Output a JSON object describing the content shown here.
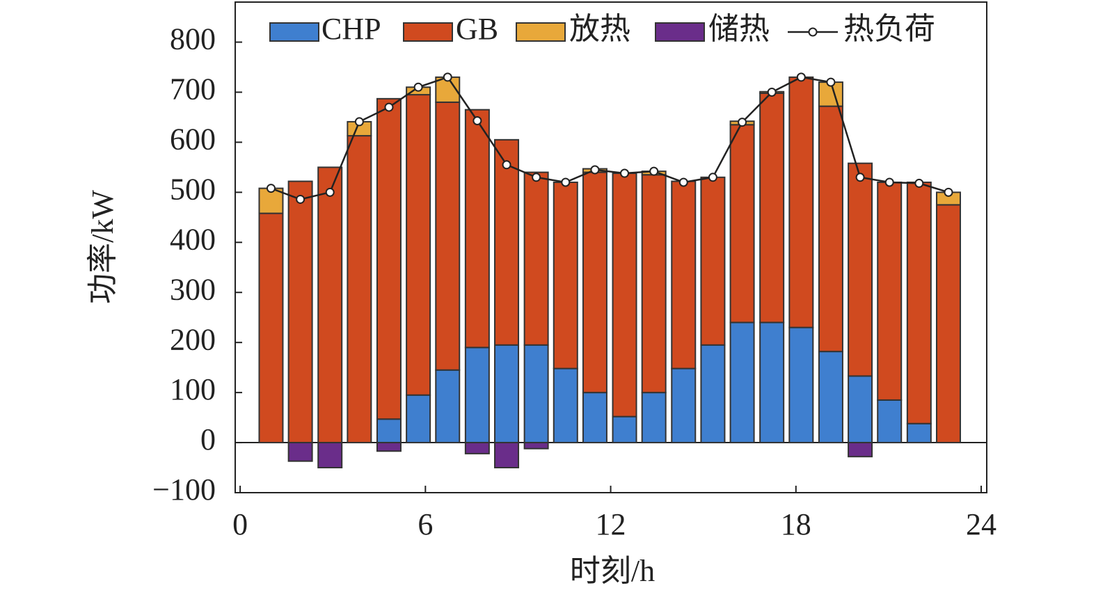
{
  "chart_data": {
    "type": "stacked-bar-line",
    "xlabel": "时刻/h",
    "ylabel": "功率/kW",
    "x": [
      1,
      1.95,
      2.91,
      3.86,
      4.82,
      5.77,
      6.72,
      7.68,
      8.63,
      9.59,
      10.54,
      11.49,
      12.45,
      13.4,
      14.36,
      15.31,
      16.26,
      17.22,
      18.17,
      19.13,
      20.08,
      21.03,
      21.99,
      22.94
    ],
    "series": [
      {
        "name": "CHP",
        "kind": "bar",
        "color": "#3f7fcf",
        "values": [
          0,
          0,
          0,
          0,
          47,
          95,
          145,
          190,
          195,
          195,
          148,
          100,
          52,
          100,
          148,
          195,
          240,
          240,
          230,
          182,
          133,
          85,
          38,
          0
        ]
      },
      {
        "name": "GB",
        "kind": "bar",
        "color": "#d04a1f",
        "values": [
          458,
          522,
          550,
          613,
          640,
          600,
          535,
          475,
          410,
          345,
          372,
          440,
          486,
          435,
          374,
          335,
          395,
          458,
          500,
          490,
          425,
          435,
          482,
          475
        ]
      },
      {
        "name": "放热",
        "kind": "bar",
        "color": "#e8a83a",
        "values": [
          50,
          0,
          0,
          28,
          0,
          15,
          50,
          0,
          0,
          0,
          0,
          7,
          0,
          7,
          0,
          0,
          7,
          3,
          0,
          48,
          0,
          0,
          0,
          25
        ]
      },
      {
        "name": "储热",
        "kind": "bar",
        "color": "#6a2d8a",
        "values": [
          0,
          -37,
          -50,
          0,
          -17,
          0,
          0,
          -22,
          -50,
          -12,
          0,
          0,
          0,
          0,
          0,
          0,
          0,
          0,
          0,
          0,
          -28,
          0,
          0,
          0
        ]
      },
      {
        "name": "热负荷",
        "kind": "line",
        "color": "#222222",
        "values": [
          508,
          486,
          500,
          641,
          670,
          710,
          730,
          643,
          555,
          530,
          520,
          545,
          538,
          542,
          520,
          530,
          640,
          700,
          730,
          720,
          530,
          520,
          518,
          500
        ]
      }
    ],
    "xlim": [
      -0.16,
      24.18
    ],
    "xticks": [
      0,
      6,
      12,
      18,
      24
    ],
    "ylim": [
      -100,
      880
    ],
    "yticks": [
      {
        "value": -100,
        "label": "−100"
      },
      0,
      100,
      200,
      300,
      400,
      500,
      600,
      700,
      800
    ],
    "legend": "top"
  }
}
